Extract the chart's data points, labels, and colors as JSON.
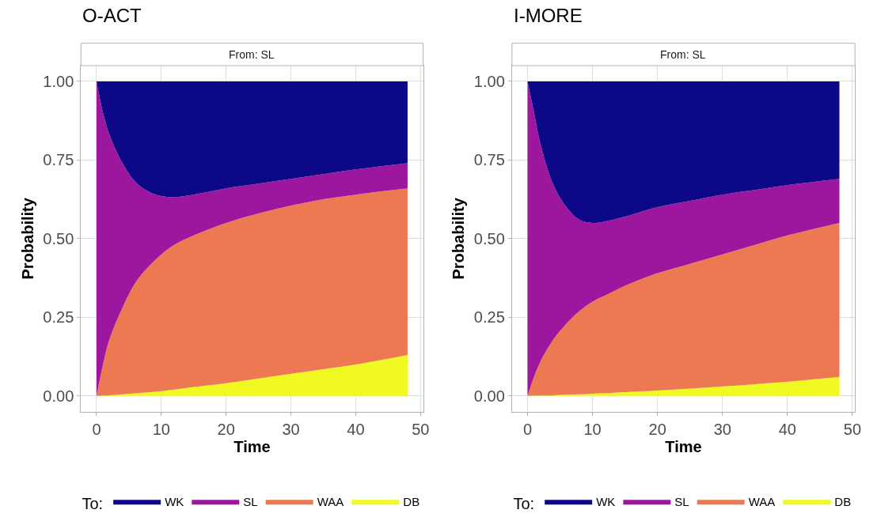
{
  "chart_data": [
    {
      "type": "area",
      "stacked": true,
      "title": "O-ACT",
      "subtitle": "From: SL",
      "xlabel": "Time",
      "ylabel": "Probability",
      "legend_title": "To:",
      "legend": "bottom",
      "grid": true,
      "x": [
        0,
        1,
        2,
        4,
        6,
        8,
        10,
        12,
        15,
        20,
        25,
        30,
        35,
        40,
        48
      ],
      "xlim": [
        -2.4,
        50.4
      ],
      "xticks": [
        0,
        10,
        20,
        30,
        40,
        50
      ],
      "ylim": [
        -0.05,
        1.05
      ],
      "yticks": [
        {
          "value": 0,
          "label": "0.00"
        },
        {
          "value": 0.25,
          "label": "0.25"
        },
        {
          "value": 0.5,
          "label": "0.50"
        },
        {
          "value": 0.75,
          "label": "0.75"
        },
        {
          "value": 1,
          "label": "1.00"
        }
      ],
      "series": [
        {
          "name": "DB",
          "color": "#f0f921",
          "values": [
            0,
            0.001,
            0.002,
            0.005,
            0.008,
            0.011,
            0.015,
            0.02,
            0.028,
            0.04,
            0.055,
            0.07,
            0.085,
            0.1,
            0.13
          ]
        },
        {
          "name": "WAA",
          "color": "#ed7953",
          "values": [
            0,
            0.099,
            0.178,
            0.275,
            0.352,
            0.399,
            0.435,
            0.46,
            0.482,
            0.51,
            0.525,
            0.535,
            0.54,
            0.54,
            0.53
          ]
        },
        {
          "name": "SL",
          "color": "#9c179e",
          "values": [
            1,
            0.8,
            0.65,
            0.46,
            0.32,
            0.24,
            0.185,
            0.152,
            0.13,
            0.11,
            0.095,
            0.085,
            0.08,
            0.08,
            0.08
          ]
        },
        {
          "name": "WK",
          "color": "#0d0887",
          "values": [
            0,
            0.1,
            0.17,
            0.26,
            0.32,
            0.35,
            0.365,
            0.368,
            0.36,
            0.34,
            0.325,
            0.31,
            0.295,
            0.28,
            0.26
          ]
        }
      ]
    },
    {
      "type": "area",
      "stacked": true,
      "title": "I-MORE",
      "subtitle": "From: SL",
      "xlabel": "Time",
      "ylabel": "Probability",
      "legend_title": "To:",
      "legend": "bottom",
      "grid": true,
      "x": [
        0,
        1,
        2,
        4,
        6,
        8,
        10,
        12,
        15,
        20,
        25,
        30,
        35,
        40,
        48
      ],
      "xlim": [
        -2.4,
        50.4
      ],
      "xticks": [
        0,
        10,
        20,
        30,
        40,
        50
      ],
      "ylim": [
        -0.05,
        1.05
      ],
      "yticks": [
        {
          "value": 0,
          "label": "0.00"
        },
        {
          "value": 0.25,
          "label": "0.25"
        },
        {
          "value": 0.5,
          "label": "0.50"
        },
        {
          "value": 0.75,
          "label": "0.75"
        },
        {
          "value": 1,
          "label": "1.00"
        }
      ],
      "series": [
        {
          "name": "DB",
          "color": "#f0f921",
          "values": [
            0,
            0.001,
            0.001,
            0.002,
            0.004,
            0.005,
            0.007,
            0.009,
            0.012,
            0.017,
            0.023,
            0.03,
            0.037,
            0.045,
            0.06
          ]
        },
        {
          "name": "WAA",
          "color": "#ed7953",
          "values": [
            0,
            0.06,
            0.109,
            0.178,
            0.226,
            0.265,
            0.293,
            0.311,
            0.338,
            0.373,
            0.397,
            0.42,
            0.443,
            0.465,
            0.49
          ]
        },
        {
          "name": "SL",
          "color": "#9c179e",
          "values": [
            1,
            0.84,
            0.69,
            0.49,
            0.37,
            0.29,
            0.25,
            0.235,
            0.22,
            0.21,
            0.2,
            0.19,
            0.175,
            0.16,
            0.14
          ]
        },
        {
          "name": "WK",
          "color": "#0d0887",
          "values": [
            0,
            0.099,
            0.2,
            0.33,
            0.4,
            0.44,
            0.45,
            0.445,
            0.43,
            0.4,
            0.38,
            0.36,
            0.345,
            0.33,
            0.31
          ]
        }
      ]
    }
  ]
}
